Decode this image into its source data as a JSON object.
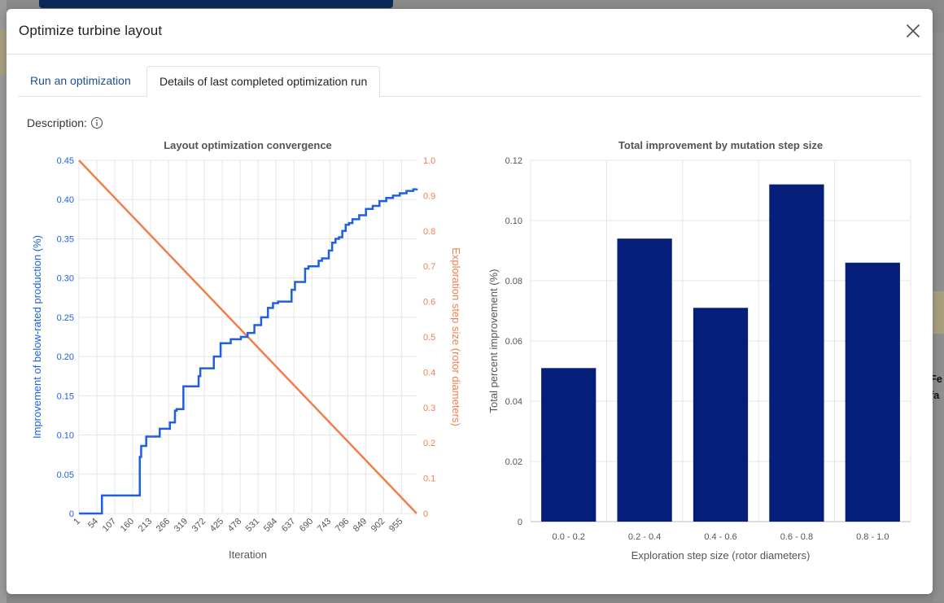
{
  "dialog": {
    "title": "Optimize turbine layout",
    "close_icon": "close-icon"
  },
  "tabs": [
    {
      "label": "Run an optimization",
      "active": false
    },
    {
      "label": "Details of last completed optimization run",
      "active": true
    }
  ],
  "description": {
    "label": "Description:",
    "icon": "info-icon"
  },
  "background": {
    "peek_text_1": "Fe",
    "peek_text_2": "fa"
  },
  "colors": {
    "blue_series": "#1f5fe0",
    "orange_series": "#f07f4d",
    "bar_fill": "#041e7a"
  },
  "chart_data": [
    {
      "type": "line",
      "title": "Layout optimization convergence",
      "xlabel": "Iteration",
      "ylabel": "Improvement of below-rated production (%)",
      "y2label": "Exploration step size (rotor diameters)",
      "xlim": [
        1,
        1000
      ],
      "ylim": [
        0,
        0.45
      ],
      "y2lim": [
        0,
        1.0
      ],
      "x_ticks": [
        "1",
        "54",
        "107",
        "160",
        "213",
        "266",
        "319",
        "372",
        "425",
        "478",
        "531",
        "584",
        "637",
        "690",
        "743",
        "796",
        "849",
        "902",
        "955"
      ],
      "y_ticks": [
        "0",
        "0.05",
        "0.10",
        "0.15",
        "0.20",
        "0.25",
        "0.30",
        "0.35",
        "0.40",
        "0.45"
      ],
      "y2_ticks": [
        "0",
        "0.1",
        "0.2",
        "0.3",
        "0.4",
        "0.5",
        "0.6",
        "0.7",
        "0.8",
        "0.9",
        "1.0"
      ],
      "grid": true,
      "series": [
        {
          "axis": "left",
          "style": "step",
          "x": [
            1,
            68,
            69,
            180,
            181,
            185,
            190,
            200,
            225,
            240,
            270,
            285,
            290,
            310,
            340,
            355,
            360,
            380,
            400,
            420,
            450,
            480,
            500,
            520,
            540,
            560,
            575,
            590,
            610,
            630,
            640,
            670,
            680,
            700,
            710,
            720,
            740,
            750,
            760,
            770,
            780,
            790,
            800,
            810,
            830,
            850,
            870,
            890,
            910,
            930,
            950,
            970,
            990,
            1000
          ],
          "y": [
            0,
            0,
            0.023,
            0.023,
            0.072,
            0.086,
            0.086,
            0.098,
            0.098,
            0.108,
            0.116,
            0.131,
            0.133,
            0.162,
            0.162,
            0.175,
            0.185,
            0.185,
            0.2,
            0.217,
            0.222,
            0.225,
            0.23,
            0.24,
            0.25,
            0.262,
            0.268,
            0.27,
            0.27,
            0.285,
            0.295,
            0.312,
            0.315,
            0.315,
            0.322,
            0.325,
            0.335,
            0.345,
            0.35,
            0.352,
            0.36,
            0.368,
            0.37,
            0.375,
            0.38,
            0.388,
            0.392,
            0.398,
            0.402,
            0.405,
            0.408,
            0.411,
            0.413,
            0.414
          ]
        },
        {
          "axis": "right",
          "style": "line",
          "x": [
            1,
            1000
          ],
          "y": [
            1.0,
            0.0
          ]
        }
      ]
    },
    {
      "type": "bar",
      "title": "Total improvement by mutation step size",
      "xlabel": "Exploration step size (rotor diameters)",
      "ylabel": "Total percent improvement (%)",
      "categories": [
        "0.0 - 0.2",
        "0.2 - 0.4",
        "0.4 - 0.6",
        "0.6 - 0.8",
        "0.8 - 1.0"
      ],
      "values": [
        0.051,
        0.094,
        0.071,
        0.112,
        0.086
      ],
      "ylim": [
        0,
        0.12
      ],
      "y_ticks": [
        "0",
        "0.02",
        "0.04",
        "0.06",
        "0.08",
        "0.10",
        "0.12"
      ],
      "grid": true
    }
  ]
}
